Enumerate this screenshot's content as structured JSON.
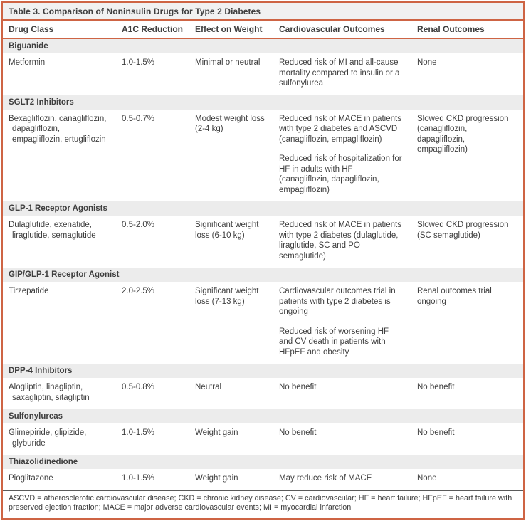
{
  "table": {
    "title": "Table 3. Comparison of Noninsulin Drugs for Type 2 Diabetes",
    "columns": {
      "drug_class": "Drug Class",
      "a1c": "A1C Reduction",
      "weight": "Effect on Weight",
      "cv": "Cardiovascular Outcomes",
      "renal": "Renal Outcomes"
    },
    "sections": [
      {
        "name": "Biguanide",
        "row": {
          "drugs": "Metformin",
          "a1c": "1.0-1.5%",
          "weight": "Minimal or neutral",
          "cv1": "Reduced risk of MI and all-cause mortality compared to insulin or a sulfonylurea",
          "cv2": "",
          "renal": "None"
        }
      },
      {
        "name": "SGLT2 Inhibitors",
        "row": {
          "drugs": "Bexagliflozin, canagliflozin, dapagliflozin, empagliflozin, ertugliflozin",
          "a1c": "0.5-0.7%",
          "weight": "Modest weight loss (2-4 kg)",
          "cv1": "Reduced risk of MACE in patients with type 2 diabetes and ASCVD (canagliflozin, empagliflozin)",
          "cv2": "Reduced risk of hospitalization for HF in adults with HF (canagliflozin, dapagliflozin, empagliflozin)",
          "renal": "Slowed CKD progression (canagliflozin, dapagliflozin, empagliflozin)"
        }
      },
      {
        "name": "GLP-1 Receptor Agonists",
        "row": {
          "drugs": "Dulaglutide, exenatide, liraglutide, semaglutide",
          "a1c": "0.5-2.0%",
          "weight": "Significant weight loss (6-10 kg)",
          "cv1": "Reduced risk of MACE in patients with type 2 diabetes (dulaglutide, liraglutide, SC and PO semaglutide)",
          "cv2": "",
          "renal": "Slowed CKD progression (SC semaglutide)"
        }
      },
      {
        "name": "GIP/GLP-1 Receptor Agonist",
        "row": {
          "drugs": "Tirzepatide",
          "a1c": "2.0-2.5%",
          "weight": "Significant weight loss (7-13 kg)",
          "cv1": "Cardiovascular outcomes trial in patients with type 2 diabetes is ongoing",
          "cv2": "Reduced risk of worsening HF and CV death in patients with HFpEF and obesity",
          "renal": "Renal outcomes trial ongoing"
        }
      },
      {
        "name": "DPP-4 Inhibitors",
        "row": {
          "drugs": "Alogliptin, linagliptin, saxagliptin, sitagliptin",
          "a1c": "0.5-0.8%",
          "weight": "Neutral",
          "cv1": "No benefit",
          "cv2": "",
          "renal": "No benefit"
        }
      },
      {
        "name": "Sulfonylureas",
        "row": {
          "drugs": "Glimepiride, glipizide, glyburide",
          "a1c": "1.0-1.5%",
          "weight": "Weight gain",
          "cv1": "No benefit",
          "cv2": "",
          "renal": "No benefit"
        }
      },
      {
        "name": "Thiazolidinedione",
        "row": {
          "drugs": "Pioglitazone",
          "a1c": "1.0-1.5%",
          "weight": "Weight gain",
          "cv1": "May reduce risk of MACE",
          "cv2": "",
          "renal": "None"
        }
      }
    ],
    "footnote": "ASCVD = atherosclerotic cardiovascular disease; CKD = chronic kidney disease; CV = cardiovascular; HF = heart failure; HFpEF = heart failure with preserved ejection fraction; MACE = major adverse cardiovascular events; MI = myocardial infarction",
    "colors": {
      "accent_orange": "#ce6444",
      "section_background": "#ececec",
      "title_background": "#f1f1f1",
      "text": "#3e3e3e",
      "footnote_divider": "#5a5a5a"
    }
  }
}
